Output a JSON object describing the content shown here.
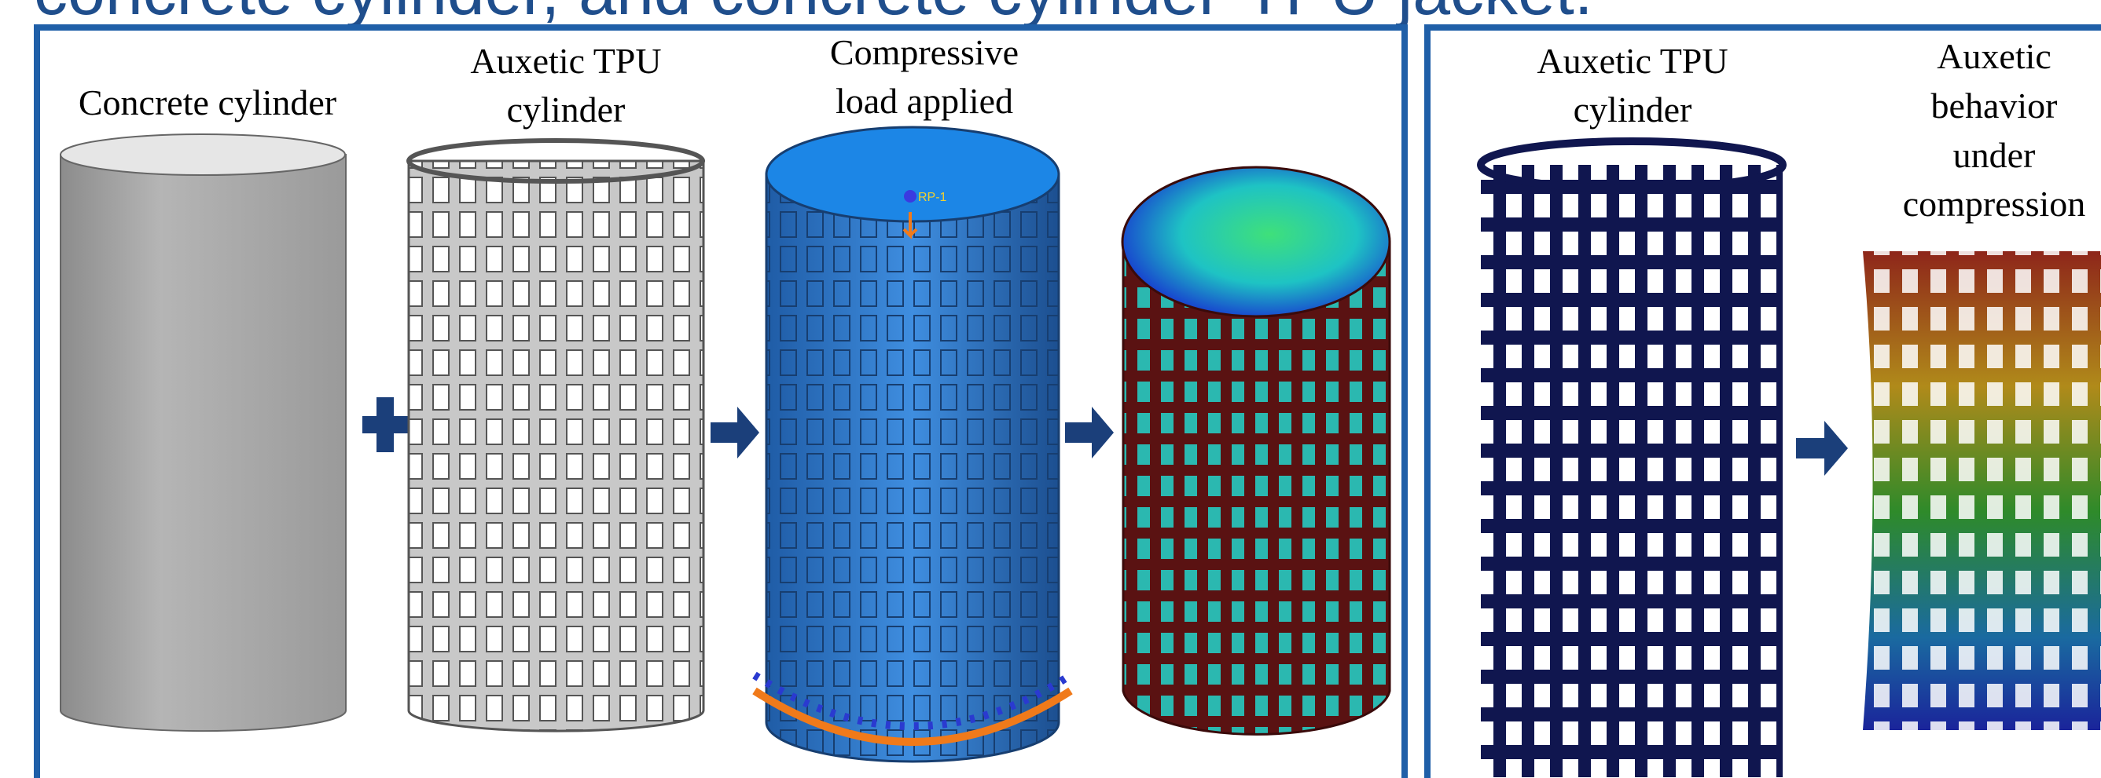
{
  "title": "concrete cylinder, and concrete cylinder-TPU jacket.",
  "panels": [
    {
      "items": [
        {
          "label": [
            "Concrete cylinder"
          ]
        },
        {
          "label": [
            "Auxetic TPU",
            "cylinder"
          ]
        },
        {
          "label": [
            "Compressive",
            "load applied"
          ],
          "annotation": "RP-1"
        },
        {
          "label": []
        }
      ]
    },
    {
      "items": [
        {
          "label": [
            "Auxetic TPU",
            "cylinder"
          ]
        },
        {
          "label": [
            "Auxetic",
            "behavior",
            "under",
            "compression"
          ]
        }
      ]
    }
  ]
}
